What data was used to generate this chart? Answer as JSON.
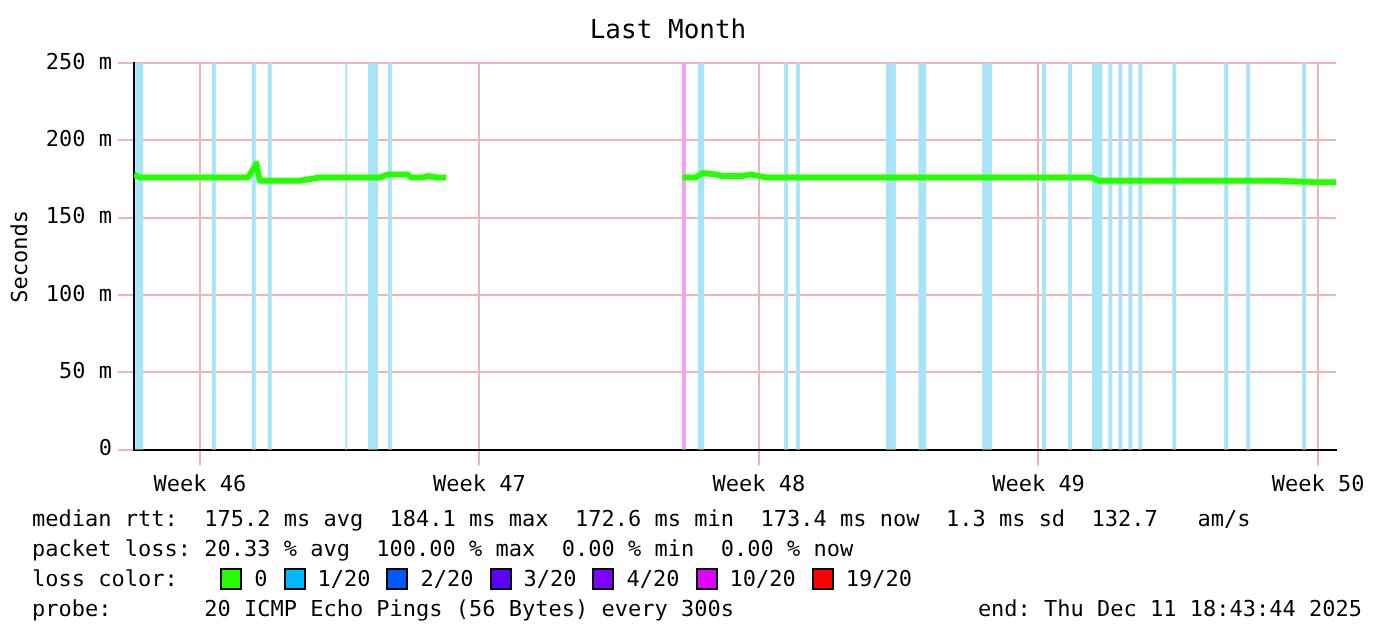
{
  "chart_data": {
    "type": "line",
    "title": "Last Month",
    "ylabel": "Seconds",
    "xlim": [
      "2025-11-11T20:24",
      "2025-12-11T22:48"
    ],
    "xticks": [
      {
        "value": "2025-11-13T12:00",
        "label": "Week 46"
      },
      {
        "value": "2025-11-20T12:00",
        "label": "Week 47"
      },
      {
        "value": "2025-11-27T12:00",
        "label": "Week 48"
      },
      {
        "value": "2025-12-04T12:00",
        "label": "Week 49"
      },
      {
        "value": "2025-12-11T12:00",
        "label": "Week 50"
      }
    ],
    "ylim": [
      0,
      250
    ],
    "yticks": [
      0,
      {
        "value": 50,
        "label": "50 m"
      },
      {
        "value": 100,
        "label": "100 m"
      },
      {
        "value": 150,
        "label": "150 m"
      },
      {
        "value": 200,
        "label": "200 m"
      },
      {
        "value": 250,
        "label": "250 m"
      }
    ],
    "grid": true,
    "legend": "bottom",
    "legend_title": "loss color:",
    "marker": "none",
    "line_style": "solid",
    "x": [
      "2025-11-11T20:24",
      "2025-11-12T00:00",
      "2025-11-12T07:00",
      "2025-11-13T00:00",
      "2025-11-14T00:00",
      "2025-11-14T17:00",
      "2025-11-14T22:00",
      "2025-11-15T00:00",
      "2025-11-15T12:00",
      "2025-11-16T00:00",
      "2025-11-16T12:00",
      "2025-11-17T00:00",
      "2025-11-17T12:00",
      "2025-11-18T00:00",
      "2025-11-18T05:00",
      "2025-11-18T17:00",
      "2025-11-18T19:00",
      "2025-11-19T02:00",
      "2025-11-19T05:00",
      "2025-11-19T10:00",
      "2025-11-19T16:00",
      "2025-11-19T22:00",
      "2025-11-25T14:00",
      "2025-11-25T22:00",
      "2025-11-26T02:00",
      "2025-11-26T10:00",
      "2025-11-26T14:00",
      "2025-11-27T02:00",
      "2025-11-27T07:00",
      "2025-11-27T17:00",
      "2025-11-28T12:00",
      "2025-11-29T12:00",
      "2025-11-30T12:00",
      "2025-12-01T12:00",
      "2025-12-02T12:00",
      "2025-12-03T12:00",
      "2025-12-04T12:00",
      "2025-12-05T12:00",
      "2025-12-05T20:00",
      "2025-12-06T00:00",
      "2025-12-06T12:00",
      "2025-12-07T12:00",
      "2025-12-08T12:00",
      "2025-12-09T12:00",
      "2025-12-10T12:00",
      "2025-12-11T12:00",
      "2025-12-11T22:48"
    ],
    "series": [
      {
        "name": "0",
        "color": "#26ff00",
        "values": [
          178,
          176,
          176,
          176,
          176,
          176,
          185,
          174,
          174,
          174,
          176,
          176,
          176,
          176,
          178,
          178,
          176,
          176,
          177,
          176,
          176,
          null,
          176,
          176,
          179,
          178,
          177,
          177,
          178,
          176,
          176,
          176,
          176,
          176,
          176,
          176,
          176,
          176,
          176,
          174,
          174,
          174,
          174,
          174,
          174,
          173,
          173
        ]
      },
      {
        "name": "1/20",
        "color": "#00b8ff",
        "values": [
          null,
          null,
          null,
          null,
          null,
          null,
          null,
          null,
          null,
          null,
          null,
          null,
          null,
          null,
          null,
          null,
          null,
          null,
          null,
          null,
          null,
          null,
          null,
          null,
          null,
          null,
          null,
          null,
          null,
          null,
          null,
          null,
          null,
          null,
          null,
          null,
          null,
          null,
          null,
          null,
          null,
          null,
          null,
          null,
          null,
          null,
          null
        ]
      },
      {
        "name": "2/20",
        "color": "#0059ff",
        "values": [
          null,
          null,
          null,
          null,
          null,
          null,
          null,
          null,
          null,
          null,
          null,
          null,
          null,
          null,
          null,
          null,
          null,
          null,
          null,
          null,
          null,
          null,
          null,
          null,
          null,
          null,
          null,
          null,
          null,
          null,
          null,
          null,
          null,
          null,
          null,
          null,
          null,
          null,
          null,
          null,
          null,
          null,
          null,
          null,
          null,
          null,
          null
        ]
      },
      {
        "name": "3/20",
        "color": "#5e00ff",
        "values": [
          null,
          null,
          null,
          null,
          null,
          null,
          null,
          null,
          null,
          null,
          null,
          null,
          null,
          null,
          null,
          null,
          null,
          null,
          null,
          null,
          null,
          null,
          null,
          null,
          null,
          null,
          null,
          null,
          null,
          null,
          null,
          null,
          null,
          null,
          null,
          null,
          null,
          null,
          null,
          null,
          null,
          null,
          null,
          null,
          null,
          null,
          null
        ]
      },
      {
        "name": "4/20",
        "color": "#7e00ff",
        "values": [
          null,
          null,
          null,
          null,
          null,
          null,
          null,
          null,
          null,
          null,
          null,
          null,
          null,
          null,
          null,
          null,
          null,
          null,
          null,
          null,
          null,
          null,
          null,
          null,
          null,
          null,
          null,
          null,
          null,
          null,
          null,
          null,
          null,
          null,
          null,
          null,
          null,
          null,
          null,
          null,
          null,
          null,
          null,
          null,
          null,
          null,
          null
        ]
      },
      {
        "name": "10/20",
        "color": "#dd00ff",
        "values": [
          null,
          null,
          null,
          null,
          null,
          null,
          null,
          null,
          null,
          null,
          null,
          null,
          null,
          null,
          null,
          null,
          null,
          null,
          null,
          null,
          null,
          null,
          null,
          null,
          null,
          null,
          null,
          null,
          null,
          null,
          null,
          null,
          null,
          null,
          null,
          null,
          null,
          null,
          null,
          null,
          null,
          null,
          null,
          null,
          null,
          null,
          null
        ]
      },
      {
        "name": "19/20",
        "color": "#ff0000",
        "values": [
          null,
          null,
          null,
          null,
          null,
          null,
          null,
          null,
          null,
          null,
          null,
          null,
          null,
          null,
          null,
          null,
          null,
          null,
          null,
          null,
          null,
          null,
          null,
          null,
          null,
          null,
          null,
          null,
          null,
          null,
          null,
          null,
          null,
          null,
          null,
          null,
          null,
          null,
          null,
          null,
          null,
          null,
          null,
          null,
          null,
          null,
          null
        ]
      }
    ],
    "bands": [
      {
        "axis": "x",
        "from": "2025-11-11T21:07",
        "to": "2025-11-12T01:55",
        "color": "#a8e4f8"
      },
      {
        "axis": "x",
        "from": "2025-11-13T19:12",
        "to": "2025-11-13T21:36",
        "color": "#a8e4f8"
      },
      {
        "axis": "x",
        "from": "2025-11-14T19:12",
        "to": "2025-11-14T21:36",
        "color": "#a8e4f8"
      },
      {
        "axis": "x",
        "from": "2025-11-15T04:48",
        "to": "2025-11-15T07:12",
        "color": "#a8e4f8"
      },
      {
        "axis": "x",
        "from": "2025-11-17T03:22",
        "to": "2025-11-17T04:34",
        "color": "#a8e4f8"
      },
      {
        "axis": "x",
        "from": "2025-11-17T17:02",
        "to": "2025-11-17T23:02",
        "color": "#a8e4f8"
      },
      {
        "axis": "x",
        "from": "2025-11-18T05:02",
        "to": "2025-11-18T07:26",
        "color": "#a8e4f8"
      },
      {
        "axis": "x",
        "from": "2025-11-25T13:41",
        "to": "2025-11-25T16:05",
        "color": "#f0a0f8"
      },
      {
        "axis": "x",
        "from": "2025-11-25T23:17",
        "to": "2025-11-26T03:07",
        "color": "#a8e4f8"
      },
      {
        "axis": "x",
        "from": "2025-11-28T03:07",
        "to": "2025-11-28T05:31",
        "color": "#a8e4f8"
      },
      {
        "axis": "x",
        "from": "2025-11-28T10:19",
        "to": "2025-11-28T12:43",
        "color": "#a8e4f8"
      },
      {
        "axis": "x",
        "from": "2025-11-30T16:19",
        "to": "2025-11-30T22:19",
        "color": "#a8e4f8"
      },
      {
        "axis": "x",
        "from": "2025-12-01T11:46",
        "to": "2025-12-01T16:34",
        "color": "#a8e4f8"
      },
      {
        "axis": "x",
        "from": "2025-12-03T02:10",
        "to": "2025-12-03T08:10",
        "color": "#a8e4f8"
      },
      {
        "axis": "x",
        "from": "2025-12-04T14:10",
        "to": "2025-12-04T16:34",
        "color": "#a8e4f8"
      },
      {
        "axis": "x",
        "from": "2025-12-05T05:46",
        "to": "2025-12-05T08:10",
        "color": "#a8e4f8"
      },
      {
        "axis": "x",
        "from": "2025-12-05T20:10",
        "to": "2025-12-06T02:24",
        "color": "#a8e4f8"
      },
      {
        "axis": "x",
        "from": "2025-12-06T06:00",
        "to": "2025-12-06T08:24",
        "color": "#a8e4f8"
      },
      {
        "axis": "x",
        "from": "2025-12-06T12:00",
        "to": "2025-12-06T14:24",
        "color": "#a8e4f8"
      },
      {
        "axis": "x",
        "from": "2025-12-06T18:00",
        "to": "2025-12-06T20:24",
        "color": "#a8e4f8"
      },
      {
        "axis": "x",
        "from": "2025-12-07T00:00",
        "to": "2025-12-07T02:24",
        "color": "#a8e4f8"
      },
      {
        "axis": "x",
        "from": "2025-12-07T20:24",
        "to": "2025-12-07T22:48",
        "color": "#a8e4f8"
      },
      {
        "axis": "x",
        "from": "2025-12-09T03:36",
        "to": "2025-12-09T06:00",
        "color": "#a8e4f8"
      },
      {
        "axis": "x",
        "from": "2025-12-09T16:48",
        "to": "2025-12-09T19:12",
        "color": "#a8e4f8"
      },
      {
        "axis": "x",
        "from": "2025-12-11T02:24",
        "to": "2025-12-11T04:48",
        "color": "#a8e4f8"
      }
    ],
    "annotations": [
      "median rtt:  175.2 ms avg  184.1 ms max  172.6 ms min  173.4 ms now  1.3 ms sd  132.7   am/s",
      "packet loss: 20.33 % avg  100.00 % max  0.00 % min  0.00 % now",
      "probe:       20 ICMP Echo Pings (56 Bytes) every 300s",
      "end: Thu Dec 11 18:43:44 2025"
    ]
  }
}
